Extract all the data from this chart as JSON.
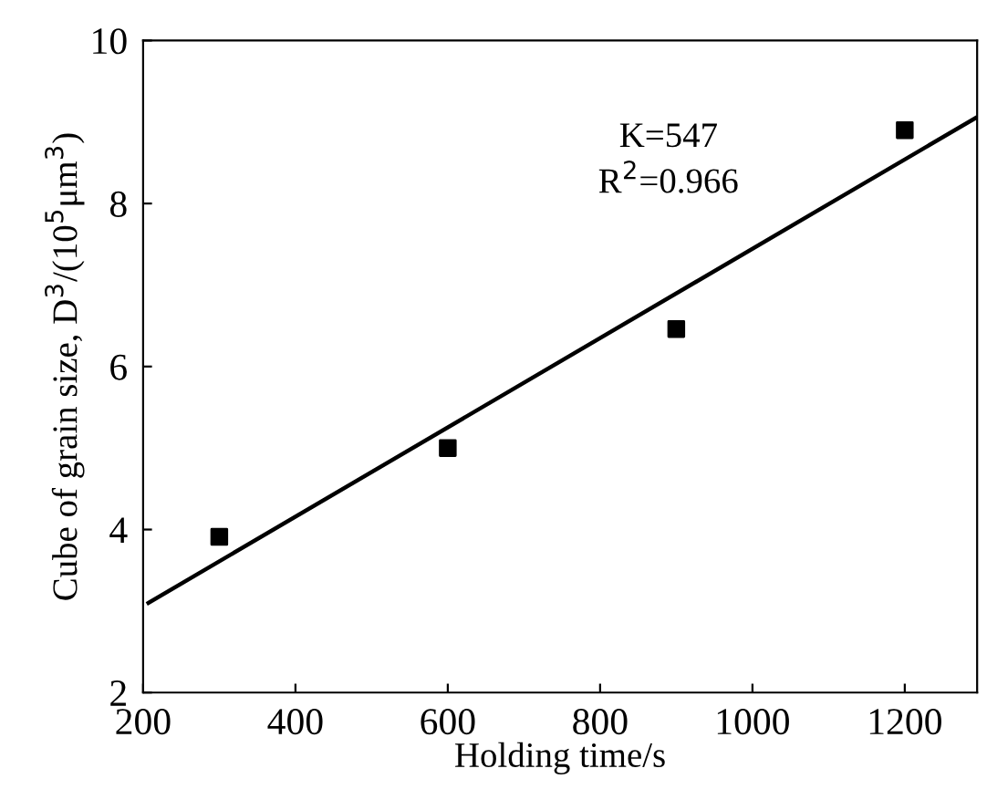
{
  "chart_data": {
    "type": "scatter",
    "xlabel": "Holding time/s",
    "ylabel": "Cube of grain size, D$^{3}$/(10$^{5}$μm$^{3}$)",
    "series": [
      {
        "color": "#000000",
        "marker": "square",
        "x": [
          300,
          600,
          900,
          1200
        ],
        "values": [
          3.91,
          5.0,
          6.46,
          8.9
        ]
      },
      {
        "type": "line",
        "color": "#000000",
        "marker": "none",
        "line_style": "solid",
        "x": [
          207,
          1293
        ],
        "values": [
          3.1,
          9.05
        ]
      }
    ],
    "annotations": [
      "K=547",
      "R$^{2}$=0.966"
    ],
    "xlim": [
      200,
      1295
    ],
    "xticks": [
      200,
      400,
      600,
      800,
      1000,
      1200
    ],
    "ylim": [
      2,
      10
    ],
    "yticks": [
      2,
      4,
      6,
      8,
      10
    ],
    "grid": false,
    "legend": false
  }
}
